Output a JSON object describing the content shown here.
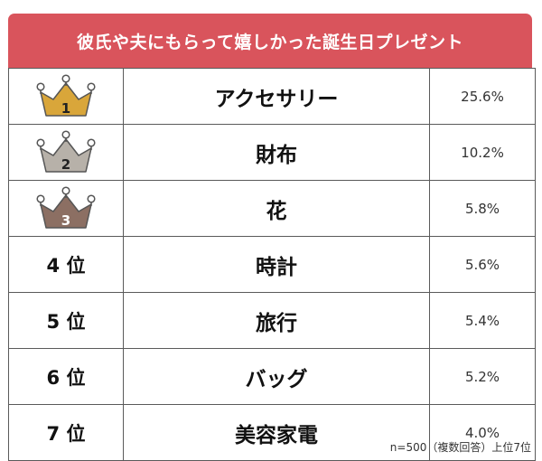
{
  "colors": {
    "header_bg": "#d9545c",
    "gold": "#d9a63a",
    "silver": "#b7b1a9",
    "bronze": "#8c6f63"
  },
  "chart_data": {
    "type": "table",
    "title": "彼氏や夫にもらって嬉しかった誕生日プレゼント",
    "rows": [
      {
        "rank": "1",
        "item": "アクセサリー",
        "value": "25.6%",
        "crown": "gold"
      },
      {
        "rank": "2",
        "item": "財布",
        "value": "10.2%",
        "crown": "silver"
      },
      {
        "rank": "3",
        "item": "花",
        "value": "5.8%",
        "crown": "bronze"
      },
      {
        "rank": "4 位",
        "item": "時計",
        "value": "5.6%"
      },
      {
        "rank": "5 位",
        "item": "旅行",
        "value": "5.4%"
      },
      {
        "rank": "6 位",
        "item": "バッグ",
        "value": "5.2%"
      },
      {
        "rank": "7 位",
        "item": "美容家電",
        "value": "4.0%"
      }
    ],
    "footnote": "n=500（複数回答）上位7位"
  }
}
